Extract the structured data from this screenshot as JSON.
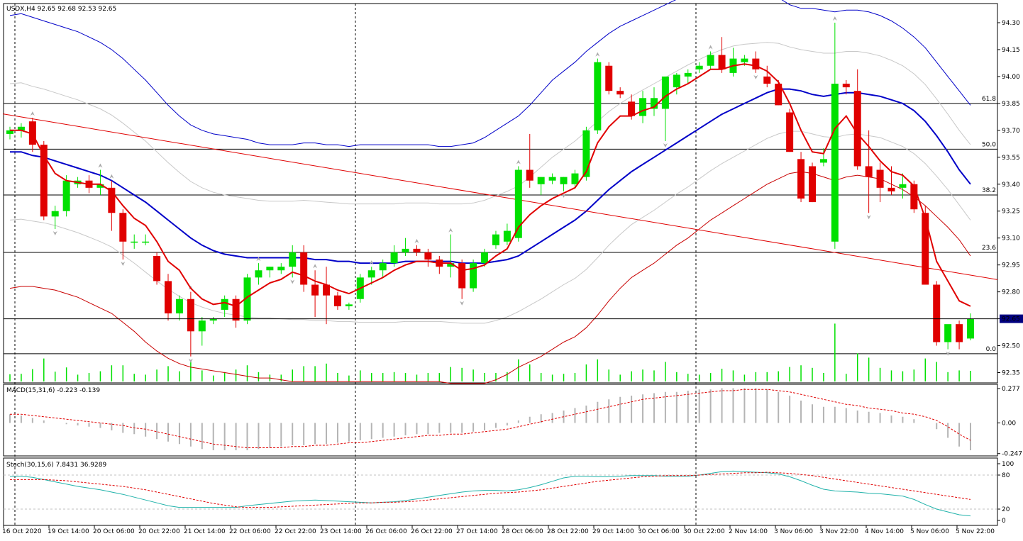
{
  "window": {
    "symbol_header": "USDX,H4  92.65 92.68 92.53 92.65",
    "macd_header": "MACD(15,31,6) -0.223 -0.139",
    "stoch_header": "Stoch(30,15,6) 7.8431 36.9289"
  },
  "chart_data": [
    {
      "type": "candlestick",
      "title": "USDX,H4  92.65 92.68 92.53 92.65",
      "ylim": [
        92.28,
        94.38
      ],
      "y_ticks": [
        "94.30",
        "94.15",
        "94.00",
        "93.85",
        "93.70",
        "93.55",
        "93.40",
        "93.25",
        "93.10",
        "92.95",
        "92.80",
        "92.65",
        "92.50",
        "92.35"
      ],
      "current_price": "92.65",
      "fib_levels": [
        {
          "label": "61.8",
          "value": 93.85
        },
        {
          "label": "50.0",
          "value": 93.595
        },
        {
          "label": "38.2",
          "value": 93.34
        },
        {
          "label": "23.6",
          "value": 93.02
        },
        {
          "label": "0.0",
          "value": 92.455
        }
      ],
      "x_labels": [
        "16 Oct 2020",
        "19 Oct 14:00",
        "20 Oct 06:00",
        "20 Oct 22:00",
        "21 Oct 14:00",
        "22 Oct 06:00",
        "22 Oct 22:00",
        "23 Oct 14:00",
        "26 Oct 06:00",
        "26 Oct 22:00",
        "27 Oct 14:00",
        "28 Oct 06:00",
        "28 Oct 22:00",
        "29 Oct 14:00",
        "30 Oct 06:00",
        "30 Oct 22:00",
        "2 Nov 14:00",
        "3 Nov 06:00",
        "3 Nov 22:00",
        "4 Nov 14:00",
        "5 Nov 06:00",
        "5 Nov 22:00"
      ],
      "candles": [
        [
          93.68,
          93.72,
          93.65,
          93.7
        ],
        [
          93.7,
          93.74,
          93.66,
          93.72
        ],
        [
          93.75,
          93.77,
          93.58,
          93.62
        ],
        [
          93.62,
          93.64,
          93.2,
          93.22
        ],
        [
          93.22,
          93.28,
          93.15,
          93.25
        ],
        [
          93.25,
          93.45,
          93.22,
          93.42
        ],
        [
          93.4,
          93.44,
          93.38,
          93.42
        ],
        [
          93.42,
          93.45,
          93.35,
          93.38
        ],
        [
          93.38,
          93.48,
          93.34,
          93.4
        ],
        [
          93.38,
          93.42,
          93.14,
          93.24
        ],
        [
          93.24,
          93.26,
          92.98,
          93.08
        ],
        [
          93.08,
          93.12,
          93.04,
          93.08
        ],
        [
          93.08,
          93.12,
          93.06,
          93.08
        ],
        [
          93.0,
          93.02,
          92.84,
          92.86
        ],
        [
          92.86,
          92.9,
          92.64,
          92.68
        ],
        [
          92.68,
          92.78,
          92.64,
          92.76
        ],
        [
          92.76,
          92.8,
          92.44,
          92.58
        ],
        [
          92.58,
          92.66,
          92.5,
          92.64
        ],
        [
          92.64,
          92.66,
          92.62,
          92.65
        ],
        [
          92.7,
          92.78,
          92.66,
          92.76
        ],
        [
          92.76,
          92.78,
          92.6,
          92.64
        ],
        [
          92.64,
          92.9,
          92.62,
          92.88
        ],
        [
          92.88,
          92.96,
          92.84,
          92.92
        ],
        [
          92.92,
          92.94,
          92.88,
          92.94
        ],
        [
          92.92,
          92.96,
          92.9,
          92.94
        ],
        [
          92.94,
          93.06,
          92.88,
          93.02
        ],
        [
          93.02,
          93.06,
          92.8,
          92.84
        ],
        [
          92.84,
          92.92,
          92.66,
          92.78
        ],
        [
          92.84,
          92.94,
          92.62,
          92.78
        ],
        [
          92.78,
          92.8,
          92.7,
          92.72
        ],
        [
          92.72,
          92.74,
          92.7,
          92.73
        ],
        [
          92.76,
          92.9,
          92.74,
          92.88
        ],
        [
          92.88,
          92.94,
          92.84,
          92.92
        ],
        [
          92.92,
          92.98,
          92.88,
          92.96
        ],
        [
          92.96,
          93.06,
          92.94,
          93.02
        ],
        [
          93.02,
          93.1,
          93.0,
          93.04
        ],
        [
          93.04,
          93.06,
          93.0,
          93.02
        ],
        [
          93.02,
          93.04,
          92.94,
          92.98
        ],
        [
          92.98,
          93.0,
          92.9,
          92.94
        ],
        [
          92.94,
          93.12,
          92.88,
          92.96
        ],
        [
          92.96,
          92.98,
          92.76,
          92.82
        ],
        [
          92.82,
          92.98,
          92.8,
          92.96
        ],
        [
          92.96,
          93.04,
          92.94,
          93.02
        ],
        [
          93.06,
          93.14,
          93.04,
          93.12
        ],
        [
          93.08,
          93.18,
          93.06,
          93.14
        ],
        [
          93.1,
          93.5,
          93.08,
          93.48
        ],
        [
          93.48,
          93.68,
          93.38,
          93.42
        ],
        [
          93.4,
          93.44,
          93.34,
          93.44
        ],
        [
          93.42,
          93.46,
          93.4,
          93.44
        ],
        [
          93.4,
          93.44,
          93.36,
          93.44
        ],
        [
          93.4,
          93.48,
          93.38,
          93.46
        ],
        [
          93.44,
          93.72,
          93.42,
          93.7
        ],
        [
          93.7,
          94.1,
          93.68,
          94.08
        ],
        [
          94.06,
          94.08,
          93.9,
          93.92
        ],
        [
          93.92,
          93.94,
          93.88,
          93.9
        ],
        [
          93.86,
          93.9,
          93.76,
          93.78
        ],
        [
          93.78,
          93.92,
          93.74,
          93.88
        ],
        [
          93.82,
          93.94,
          93.78,
          93.88
        ],
        [
          93.82,
          94.0,
          93.64,
          94.0
        ],
        [
          93.94,
          94.02,
          93.9,
          94.01
        ],
        [
          94.0,
          94.04,
          93.96,
          94.02
        ],
        [
          94.04,
          94.08,
          94.02,
          94.06
        ],
        [
          94.06,
          94.14,
          94.04,
          94.12
        ],
        [
          94.12,
          94.22,
          94.02,
          94.04
        ],
        [
          94.02,
          94.16,
          94.0,
          94.1
        ],
        [
          94.08,
          94.12,
          94.06,
          94.1
        ],
        [
          94.1,
          94.14,
          94.02,
          94.04
        ],
        [
          94.0,
          94.06,
          93.94,
          93.96
        ],
        [
          93.96,
          93.98,
          93.84,
          93.84
        ],
        [
          93.8,
          93.82,
          93.58,
          93.58
        ],
        [
          93.54,
          93.58,
          93.3,
          93.32
        ],
        [
          93.5,
          93.52,
          93.3,
          93.3
        ],
        [
          93.52,
          93.6,
          93.5,
          93.54
        ],
        [
          93.08,
          94.3,
          93.04,
          93.96
        ],
        [
          93.96,
          93.98,
          93.9,
          93.94
        ],
        [
          93.92,
          94.04,
          93.48,
          93.5
        ],
        [
          93.5,
          93.7,
          93.24,
          93.44
        ],
        [
          93.48,
          93.52,
          93.3,
          93.38
        ],
        [
          93.38,
          93.5,
          93.34,
          93.36
        ],
        [
          93.38,
          93.46,
          93.32,
          93.4
        ],
        [
          93.4,
          93.42,
          93.24,
          93.26
        ],
        [
          93.24,
          93.28,
          92.84,
          92.84
        ],
        [
          92.84,
          92.86,
          92.5,
          92.52
        ],
        [
          92.52,
          92.6,
          92.48,
          92.62
        ],
        [
          92.62,
          92.64,
          92.48,
          92.52
        ],
        [
          92.54,
          92.68,
          92.53,
          92.65
        ]
      ],
      "ema_red": [
        93.7,
        93.7,
        93.68,
        93.56,
        93.46,
        93.42,
        93.41,
        93.4,
        93.4,
        93.36,
        93.28,
        93.21,
        93.17,
        93.08,
        92.97,
        92.92,
        92.82,
        92.76,
        92.73,
        92.74,
        92.72,
        92.77,
        92.81,
        92.85,
        92.87,
        92.91,
        92.89,
        92.86,
        92.84,
        92.81,
        92.79,
        92.82,
        92.85,
        92.88,
        92.92,
        92.95,
        92.97,
        92.97,
        92.96,
        92.96,
        92.92,
        92.93,
        92.95,
        93.0,
        93.04,
        93.16,
        93.23,
        93.28,
        93.32,
        93.35,
        93.38,
        93.47,
        93.63,
        93.72,
        93.78,
        93.78,
        93.81,
        93.83,
        93.89,
        93.93,
        93.96,
        94.0,
        94.04,
        94.04,
        94.06,
        94.07,
        94.06,
        94.03,
        93.97,
        93.85,
        93.7,
        93.58,
        93.57,
        93.71,
        93.78,
        93.68,
        93.61,
        93.53,
        93.47,
        93.45,
        93.39,
        93.21,
        92.97,
        92.86,
        92.75,
        92.72
      ],
      "bb_mid": [
        93.58,
        93.58,
        93.56,
        93.55,
        93.53,
        93.51,
        93.49,
        93.47,
        93.45,
        93.42,
        93.38,
        93.34,
        93.3,
        93.25,
        93.2,
        93.15,
        93.1,
        93.06,
        93.03,
        93.01,
        93.0,
        92.99,
        92.99,
        92.99,
        92.99,
        92.99,
        92.99,
        92.98,
        92.98,
        92.97,
        92.97,
        92.96,
        92.96,
        92.96,
        92.96,
        92.97,
        92.97,
        92.97,
        92.97,
        92.97,
        92.96,
        92.96,
        92.96,
        92.97,
        92.98,
        93.0,
        93.04,
        93.08,
        93.12,
        93.16,
        93.2,
        93.25,
        93.31,
        93.37,
        93.42,
        93.47,
        93.51,
        93.55,
        93.59,
        93.63,
        93.67,
        93.71,
        93.75,
        93.79,
        93.82,
        93.85,
        93.88,
        93.91,
        93.93,
        93.93,
        93.92,
        93.9,
        93.89,
        93.9,
        93.91,
        93.91,
        93.9,
        93.89,
        93.87,
        93.85,
        93.81,
        93.75,
        93.67,
        93.58,
        93.48,
        93.4
      ],
      "bb_upper": [
        94.34,
        94.35,
        94.33,
        94.31,
        94.29,
        94.27,
        94.25,
        94.22,
        94.19,
        94.15,
        94.1,
        94.04,
        93.98,
        93.91,
        93.84,
        93.78,
        93.73,
        93.7,
        93.68,
        93.67,
        93.66,
        93.65,
        93.63,
        93.62,
        93.62,
        93.62,
        93.63,
        93.63,
        93.62,
        93.62,
        93.61,
        93.62,
        93.62,
        93.62,
        93.62,
        93.62,
        93.62,
        93.62,
        93.61,
        93.61,
        93.62,
        93.63,
        93.66,
        93.7,
        93.74,
        93.78,
        93.84,
        93.91,
        93.98,
        94.03,
        94.08,
        94.14,
        94.19,
        94.24,
        94.28,
        94.31,
        94.34,
        94.37,
        94.4,
        94.43,
        94.46,
        94.48,
        94.5,
        94.51,
        94.52,
        94.51,
        94.49,
        94.47,
        94.44,
        94.4,
        94.38,
        94.38,
        94.37,
        94.36,
        94.37,
        94.37,
        94.36,
        94.34,
        94.31,
        94.27,
        94.22,
        94.16,
        94.08,
        94.0,
        93.92,
        93.84
      ],
      "bb_lower": [
        92.82,
        92.83,
        92.83,
        92.82,
        92.81,
        92.79,
        92.77,
        92.74,
        92.71,
        92.68,
        92.63,
        92.58,
        92.52,
        92.47,
        92.43,
        92.4,
        92.38,
        92.37,
        92.36,
        92.35,
        92.34,
        92.33,
        92.32,
        92.32,
        92.31,
        92.3,
        92.3,
        92.3,
        92.3,
        92.3,
        92.3,
        92.3,
        92.3,
        92.3,
        92.3,
        92.3,
        92.3,
        92.3,
        92.3,
        92.29,
        92.29,
        92.29,
        92.29,
        92.31,
        92.34,
        92.38,
        92.41,
        92.44,
        92.48,
        92.52,
        92.55,
        92.6,
        92.67,
        92.75,
        92.82,
        92.88,
        92.92,
        92.96,
        93.01,
        93.06,
        93.1,
        93.15,
        93.2,
        93.24,
        93.28,
        93.32,
        93.36,
        93.4,
        93.43,
        93.46,
        93.47,
        93.46,
        93.44,
        93.42,
        93.44,
        93.45,
        93.44,
        93.43,
        93.4,
        93.37,
        93.33,
        93.28,
        93.22,
        93.16,
        93.09,
        93.0
      ],
      "trendline": [
        {
          "x": 0,
          "y": 93.78
        },
        {
          "x": 85,
          "y": 92.88
        }
      ],
      "x_scale": "candle index 0-85; x_labels mark evenly spaced sessions"
    },
    {
      "type": "histogram",
      "title": "MACD(15,31,6) -0.223 -0.139",
      "y_ticks": [
        "0.277",
        "0.00",
        "-0.247"
      ],
      "ylim": [
        -0.29,
        0.31
      ],
      "histogram": [
        0.07,
        0.06,
        0.04,
        0.02,
        0.0,
        -0.01,
        -0.02,
        -0.03,
        -0.04,
        -0.06,
        -0.08,
        -0.09,
        -0.11,
        -0.13,
        -0.15,
        -0.17,
        -0.19,
        -0.21,
        -0.22,
        -0.22,
        -0.22,
        -0.22,
        -0.21,
        -0.2,
        -0.19,
        -0.18,
        -0.18,
        -0.17,
        -0.17,
        -0.16,
        -0.15,
        -0.14,
        -0.13,
        -0.12,
        -0.11,
        -0.1,
        -0.09,
        -0.09,
        -0.08,
        -0.08,
        -0.08,
        -0.07,
        -0.06,
        -0.04,
        -0.02,
        0.02,
        0.05,
        0.07,
        0.08,
        0.1,
        0.12,
        0.14,
        0.17,
        0.19,
        0.21,
        0.22,
        0.23,
        0.24,
        0.25,
        0.25,
        0.26,
        0.27,
        0.27,
        0.28,
        0.28,
        0.28,
        0.28,
        0.27,
        0.25,
        0.22,
        0.18,
        0.15,
        0.13,
        0.13,
        0.12,
        0.1,
        0.09,
        0.08,
        0.06,
        0.05,
        0.03,
        0.0,
        -0.05,
        -0.12,
        -0.19,
        -0.22
      ],
      "signal": [
        0.07,
        0.07,
        0.06,
        0.05,
        0.04,
        0.03,
        0.02,
        0.01,
        0.0,
        -0.01,
        -0.02,
        -0.04,
        -0.05,
        -0.07,
        -0.09,
        -0.11,
        -0.13,
        -0.15,
        -0.17,
        -0.18,
        -0.19,
        -0.2,
        -0.2,
        -0.2,
        -0.2,
        -0.19,
        -0.19,
        -0.18,
        -0.18,
        -0.17,
        -0.16,
        -0.16,
        -0.15,
        -0.14,
        -0.13,
        -0.12,
        -0.11,
        -0.1,
        -0.1,
        -0.09,
        -0.09,
        -0.08,
        -0.07,
        -0.06,
        -0.05,
        -0.03,
        -0.01,
        0.01,
        0.03,
        0.05,
        0.07,
        0.09,
        0.11,
        0.13,
        0.15,
        0.17,
        0.19,
        0.2,
        0.21,
        0.22,
        0.23,
        0.24,
        0.25,
        0.26,
        0.26,
        0.27,
        0.27,
        0.27,
        0.26,
        0.25,
        0.23,
        0.21,
        0.19,
        0.17,
        0.15,
        0.14,
        0.12,
        0.11,
        0.1,
        0.08,
        0.07,
        0.05,
        0.02,
        -0.03,
        -0.09,
        -0.14
      ]
    },
    {
      "type": "line",
      "title": "Stoch(30,15,6) 7.8431 36.9289",
      "y_ticks": [
        "100",
        "80",
        "20",
        "0"
      ],
      "levels": [
        80,
        20
      ],
      "ylim": [
        0,
        100
      ],
      "main": [
        78,
        78,
        76,
        72,
        68,
        64,
        60,
        57,
        54,
        50,
        46,
        41,
        36,
        31,
        26,
        23,
        23,
        23,
        23,
        23,
        23,
        26,
        28,
        30,
        32,
        34,
        35,
        36,
        35,
        34,
        33,
        32,
        31,
        32,
        33,
        35,
        38,
        41,
        44,
        47,
        50,
        52,
        53,
        53,
        52,
        54,
        58,
        63,
        69,
        75,
        78,
        78,
        77,
        77,
        78,
        79,
        79,
        79,
        78,
        78,
        78,
        80,
        83,
        86,
        87,
        86,
        85,
        84,
        82,
        77,
        70,
        62,
        55,
        52,
        51,
        50,
        48,
        47,
        45,
        43,
        37,
        28,
        20,
        15,
        10,
        8
      ],
      "signal": [
        72,
        72,
        72,
        72,
        71,
        70,
        68,
        66,
        64,
        62,
        60,
        57,
        54,
        50,
        46,
        42,
        38,
        34,
        30,
        27,
        24,
        23,
        23,
        23,
        24,
        25,
        26,
        27,
        28,
        29,
        30,
        31,
        31,
        32,
        32,
        33,
        34,
        36,
        38,
        40,
        42,
        44,
        46,
        48,
        49,
        50,
        52,
        54,
        57,
        60,
        63,
        66,
        69,
        71,
        73,
        75,
        77,
        78,
        79,
        79,
        79,
        80,
        81,
        82,
        83,
        84,
        84,
        85,
        84,
        83,
        81,
        79,
        76,
        73,
        70,
        67,
        64,
        61,
        58,
        55,
        52,
        49,
        46,
        43,
        40,
        37
      ]
    }
  ]
}
